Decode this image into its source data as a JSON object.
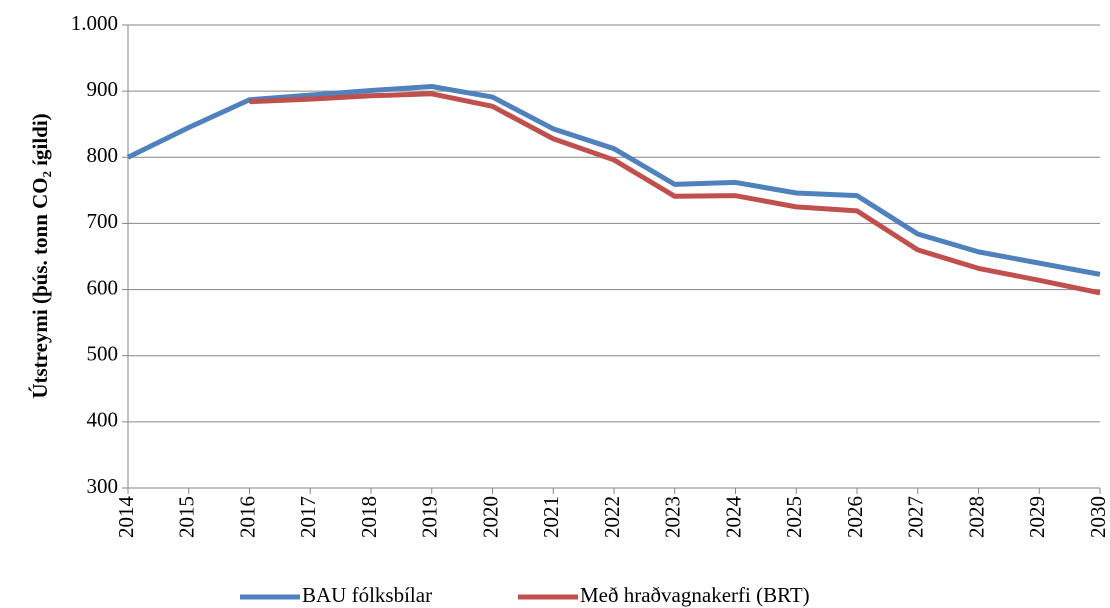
{
  "chart_data": {
    "type": "line",
    "y_label": "Útstreymi (þús. tonn CO₂ ígildi)",
    "categories": [
      "2014",
      "2015",
      "2016",
      "2017",
      "2018",
      "2019",
      "2020",
      "2021",
      "2022",
      "2023",
      "2024",
      "2025",
      "2026",
      "2027",
      "2028",
      "2029",
      "2030"
    ],
    "series": [
      {
        "name": "BAU fólksbílar",
        "color": "#4f81bd",
        "values": [
          800,
          845,
          887,
          894,
          901,
          907,
          891,
          843,
          813,
          759,
          762,
          746,
          742,
          684,
          657,
          640,
          623
        ]
      },
      {
        "name": "Með hraðvagnakerfi (BRT)",
        "color": "#c0504d",
        "values": [
          null,
          null,
          884,
          888,
          893,
          896,
          877,
          828,
          796,
          741,
          742,
          725,
          719,
          660,
          632,
          614,
          595
        ]
      }
    ],
    "ylim": [
      300,
      1000
    ],
    "yticks": [
      300,
      400,
      500,
      600,
      700,
      800,
      900,
      {
        "value": 1000,
        "label": "1.000"
      }
    ],
    "grid": true,
    "legend": "bottom"
  }
}
